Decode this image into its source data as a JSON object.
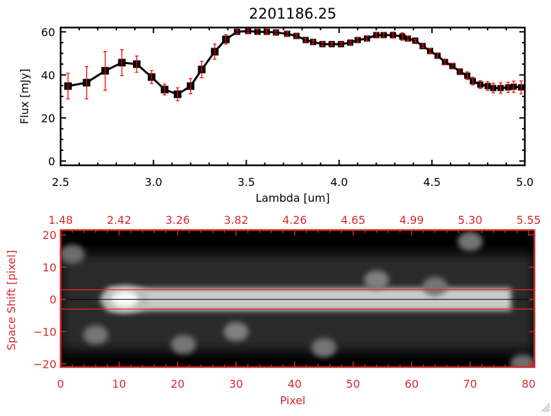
{
  "colors": {
    "axis_top": "#000000",
    "axis_bottom": "#d42a2a",
    "error_bar": "#ff0000",
    "marker": "#000000"
  },
  "chart_data": [
    {
      "type": "line",
      "title": "2201186.25",
      "xlabel": "Lambda [um]",
      "ylabel": "Flux [mJy]",
      "xlim": [
        2.5,
        5.0
      ],
      "ylim": [
        -2,
        62
      ],
      "xticks": [
        "2.5",
        "3.0",
        "3.5",
        "4.0",
        "4.5",
        "5.0"
      ],
      "xtick_values": [
        2.5,
        3.0,
        3.5,
        4.0,
        4.5,
        5.0
      ],
      "yticks": [
        "0",
        "20",
        "40",
        "60"
      ],
      "ytick_values": [
        0,
        20,
        40,
        60
      ],
      "series": [
        {
          "name": "flux",
          "x": [
            2.54,
            2.64,
            2.74,
            2.83,
            2.91,
            2.99,
            3.06,
            3.13,
            3.2,
            3.26,
            3.33,
            3.39,
            3.45,
            3.51,
            3.56,
            3.61,
            3.66,
            3.72,
            3.77,
            3.82,
            3.86,
            3.91,
            3.96,
            4.01,
            4.06,
            4.1,
            4.15,
            4.2,
            4.24,
            4.29,
            4.34,
            4.37,
            4.41,
            4.45,
            4.49,
            4.53,
            4.57,
            4.61,
            4.65,
            4.69,
            4.72,
            4.76,
            4.8,
            4.83,
            4.87,
            4.91,
            4.94,
            4.98
          ],
          "y": [
            34.8,
            36.4,
            41.9,
            45.7,
            45.0,
            39.0,
            33.2,
            31.0,
            34.8,
            42.5,
            50.8,
            56.5,
            60.0,
            60.4,
            60.0,
            60.0,
            59.7,
            59.1,
            58.1,
            56.2,
            55.3,
            54.3,
            54.3,
            54.3,
            55.0,
            56.2,
            56.9,
            58.5,
            58.5,
            58.5,
            57.8,
            56.9,
            55.9,
            53.4,
            51.1,
            48.9,
            46.0,
            44.1,
            41.5,
            39.6,
            37.1,
            35.5,
            34.8,
            33.9,
            33.9,
            34.2,
            34.5,
            34.2
          ],
          "err": [
            6,
            7.5,
            9,
            6,
            3.8,
            3,
            2.5,
            3,
            3.5,
            3.8,
            3.5,
            2.2,
            0.8,
            1,
            1.2,
            1,
            0.8,
            1,
            0.8,
            0.8,
            0.8,
            0.8,
            0.7,
            0.7,
            0.7,
            0.9,
            1,
            1.3,
            1.3,
            1.4,
            1.7,
            1.1,
            0.6,
            0.8,
            1,
            1.3,
            1.3,
            1.3,
            1.4,
            1.8,
            1.8,
            1.8,
            2,
            2.2,
            2.4,
            2.4,
            2.6,
            3
          ]
        }
      ]
    },
    {
      "type": "heatmap",
      "xlabel": "Pixel",
      "ylabel": "Space Shift [pixel]",
      "xlim": [
        0,
        81
      ],
      "ylim": [
        -21,
        21.5
      ],
      "xticks": [
        "0",
        "10",
        "20",
        "30",
        "40",
        "50",
        "60",
        "70",
        "80"
      ],
      "xtick_values": [
        0,
        10,
        20,
        30,
        40,
        50,
        60,
        70,
        80
      ],
      "yticks": [
        "20",
        "10",
        "0",
        "−10",
        "−20"
      ],
      "ytick_values": [
        20,
        10,
        0,
        -10,
        -20
      ],
      "top_axis_labels": [
        "1.48",
        "2.42",
        "3.26",
        "3.82",
        "4.26",
        "4.65",
        "4.99",
        "5.30",
        "5.55"
      ],
      "aperture_lines": [
        3,
        -3
      ],
      "center_line": 0,
      "colormap": "grayscale",
      "features": [
        {
          "name": "trace",
          "x0": 8,
          "x1": 77,
          "y": 0,
          "halfwidth": 3.5,
          "intensity": 0.75
        },
        {
          "name": "peak",
          "x": 11,
          "y": 0,
          "intensity": 1.0
        },
        {
          "name": "blob",
          "x": 54,
          "y": 6,
          "intensity": 0.35
        },
        {
          "name": "blob",
          "x": 64,
          "y": 4,
          "intensity": 0.3
        },
        {
          "name": "blob",
          "x": 30,
          "y": -10,
          "intensity": 0.35
        },
        {
          "name": "blob",
          "x": 21,
          "y": -14,
          "intensity": 0.3
        },
        {
          "name": "blob",
          "x": 45,
          "y": -15,
          "intensity": 0.3
        },
        {
          "name": "blob",
          "x": 6,
          "y": -11,
          "intensity": 0.3
        },
        {
          "name": "blob",
          "x": 70,
          "y": 18,
          "intensity": 0.3
        },
        {
          "name": "blob",
          "x": 2,
          "y": 14,
          "intensity": 0.25
        },
        {
          "name": "blob",
          "x": 79,
          "y": -20,
          "intensity": 0.25
        }
      ]
    }
  ]
}
